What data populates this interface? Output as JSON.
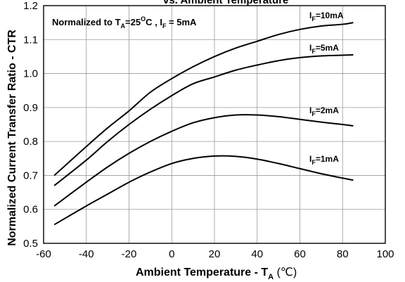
{
  "chart_data": {
    "type": "line",
    "title": "vs. Ambient Temperature",
    "xlabel": "Ambient Temperature - T",
    "xlabel_sub": "A",
    "xlabel_unit": " (℃)",
    "ylabel": "Normalized Current Transfer Ratio - CTR",
    "xlim": [
      -60,
      100
    ],
    "ylim": [
      0.5,
      1.2
    ],
    "xticks": [
      -60,
      -40,
      -20,
      0,
      20,
      40,
      60,
      80,
      100
    ],
    "yticks": [
      "0.5",
      "0.6",
      "0.7",
      "0.8",
      "0.9",
      "1.0",
      "1.1",
      "1.2"
    ],
    "grid": true,
    "annotation": {
      "prefix": "Normalized to T",
      "prefix_sub": "A",
      "temp": "=25",
      "temp_sup": "O",
      "temp_unit": "C , I",
      "cur_sub": "F",
      "cur": " = 5mA"
    },
    "series": [
      {
        "name": "I_F=10mA",
        "label_main": "I",
        "label_sub": "F",
        "label_rest": "=10mA",
        "x": [
          -55,
          -40,
          -30,
          -20,
          -10,
          0,
          10,
          20,
          30,
          40,
          50,
          60,
          70,
          80,
          85
        ],
        "y": [
          0.7,
          0.785,
          0.84,
          0.89,
          0.945,
          0.985,
          1.02,
          1.05,
          1.075,
          1.095,
          1.115,
          1.13,
          1.14,
          1.145,
          1.15
        ]
      },
      {
        "name": "I_F=5mA",
        "label_main": "I",
        "label_sub": "F",
        "label_rest": "=5mA",
        "x": [
          -55,
          -40,
          -30,
          -20,
          -10,
          0,
          10,
          20,
          30,
          40,
          50,
          60,
          70,
          80,
          85
        ],
        "y": [
          0.67,
          0.745,
          0.8,
          0.85,
          0.895,
          0.935,
          0.97,
          0.99,
          1.01,
          1.025,
          1.038,
          1.047,
          1.052,
          1.054,
          1.055
        ]
      },
      {
        "name": "I_F=2mA",
        "label_main": "I",
        "label_sub": "F",
        "label_rest": "=2mA",
        "x": [
          -55,
          -40,
          -30,
          -20,
          -10,
          0,
          10,
          20,
          30,
          40,
          50,
          60,
          70,
          80,
          85
        ],
        "y": [
          0.61,
          0.68,
          0.725,
          0.765,
          0.8,
          0.83,
          0.855,
          0.87,
          0.878,
          0.878,
          0.873,
          0.865,
          0.857,
          0.85,
          0.846
        ]
      },
      {
        "name": "I_F=1mA",
        "label_main": "I",
        "label_sub": "F",
        "label_rest": "=1mA",
        "x": [
          -55,
          -40,
          -30,
          -20,
          -10,
          0,
          10,
          20,
          30,
          40,
          50,
          60,
          70,
          80,
          85
        ],
        "y": [
          0.555,
          0.61,
          0.645,
          0.68,
          0.71,
          0.735,
          0.75,
          0.757,
          0.756,
          0.748,
          0.735,
          0.72,
          0.705,
          0.692,
          0.686
        ]
      }
    ]
  }
}
